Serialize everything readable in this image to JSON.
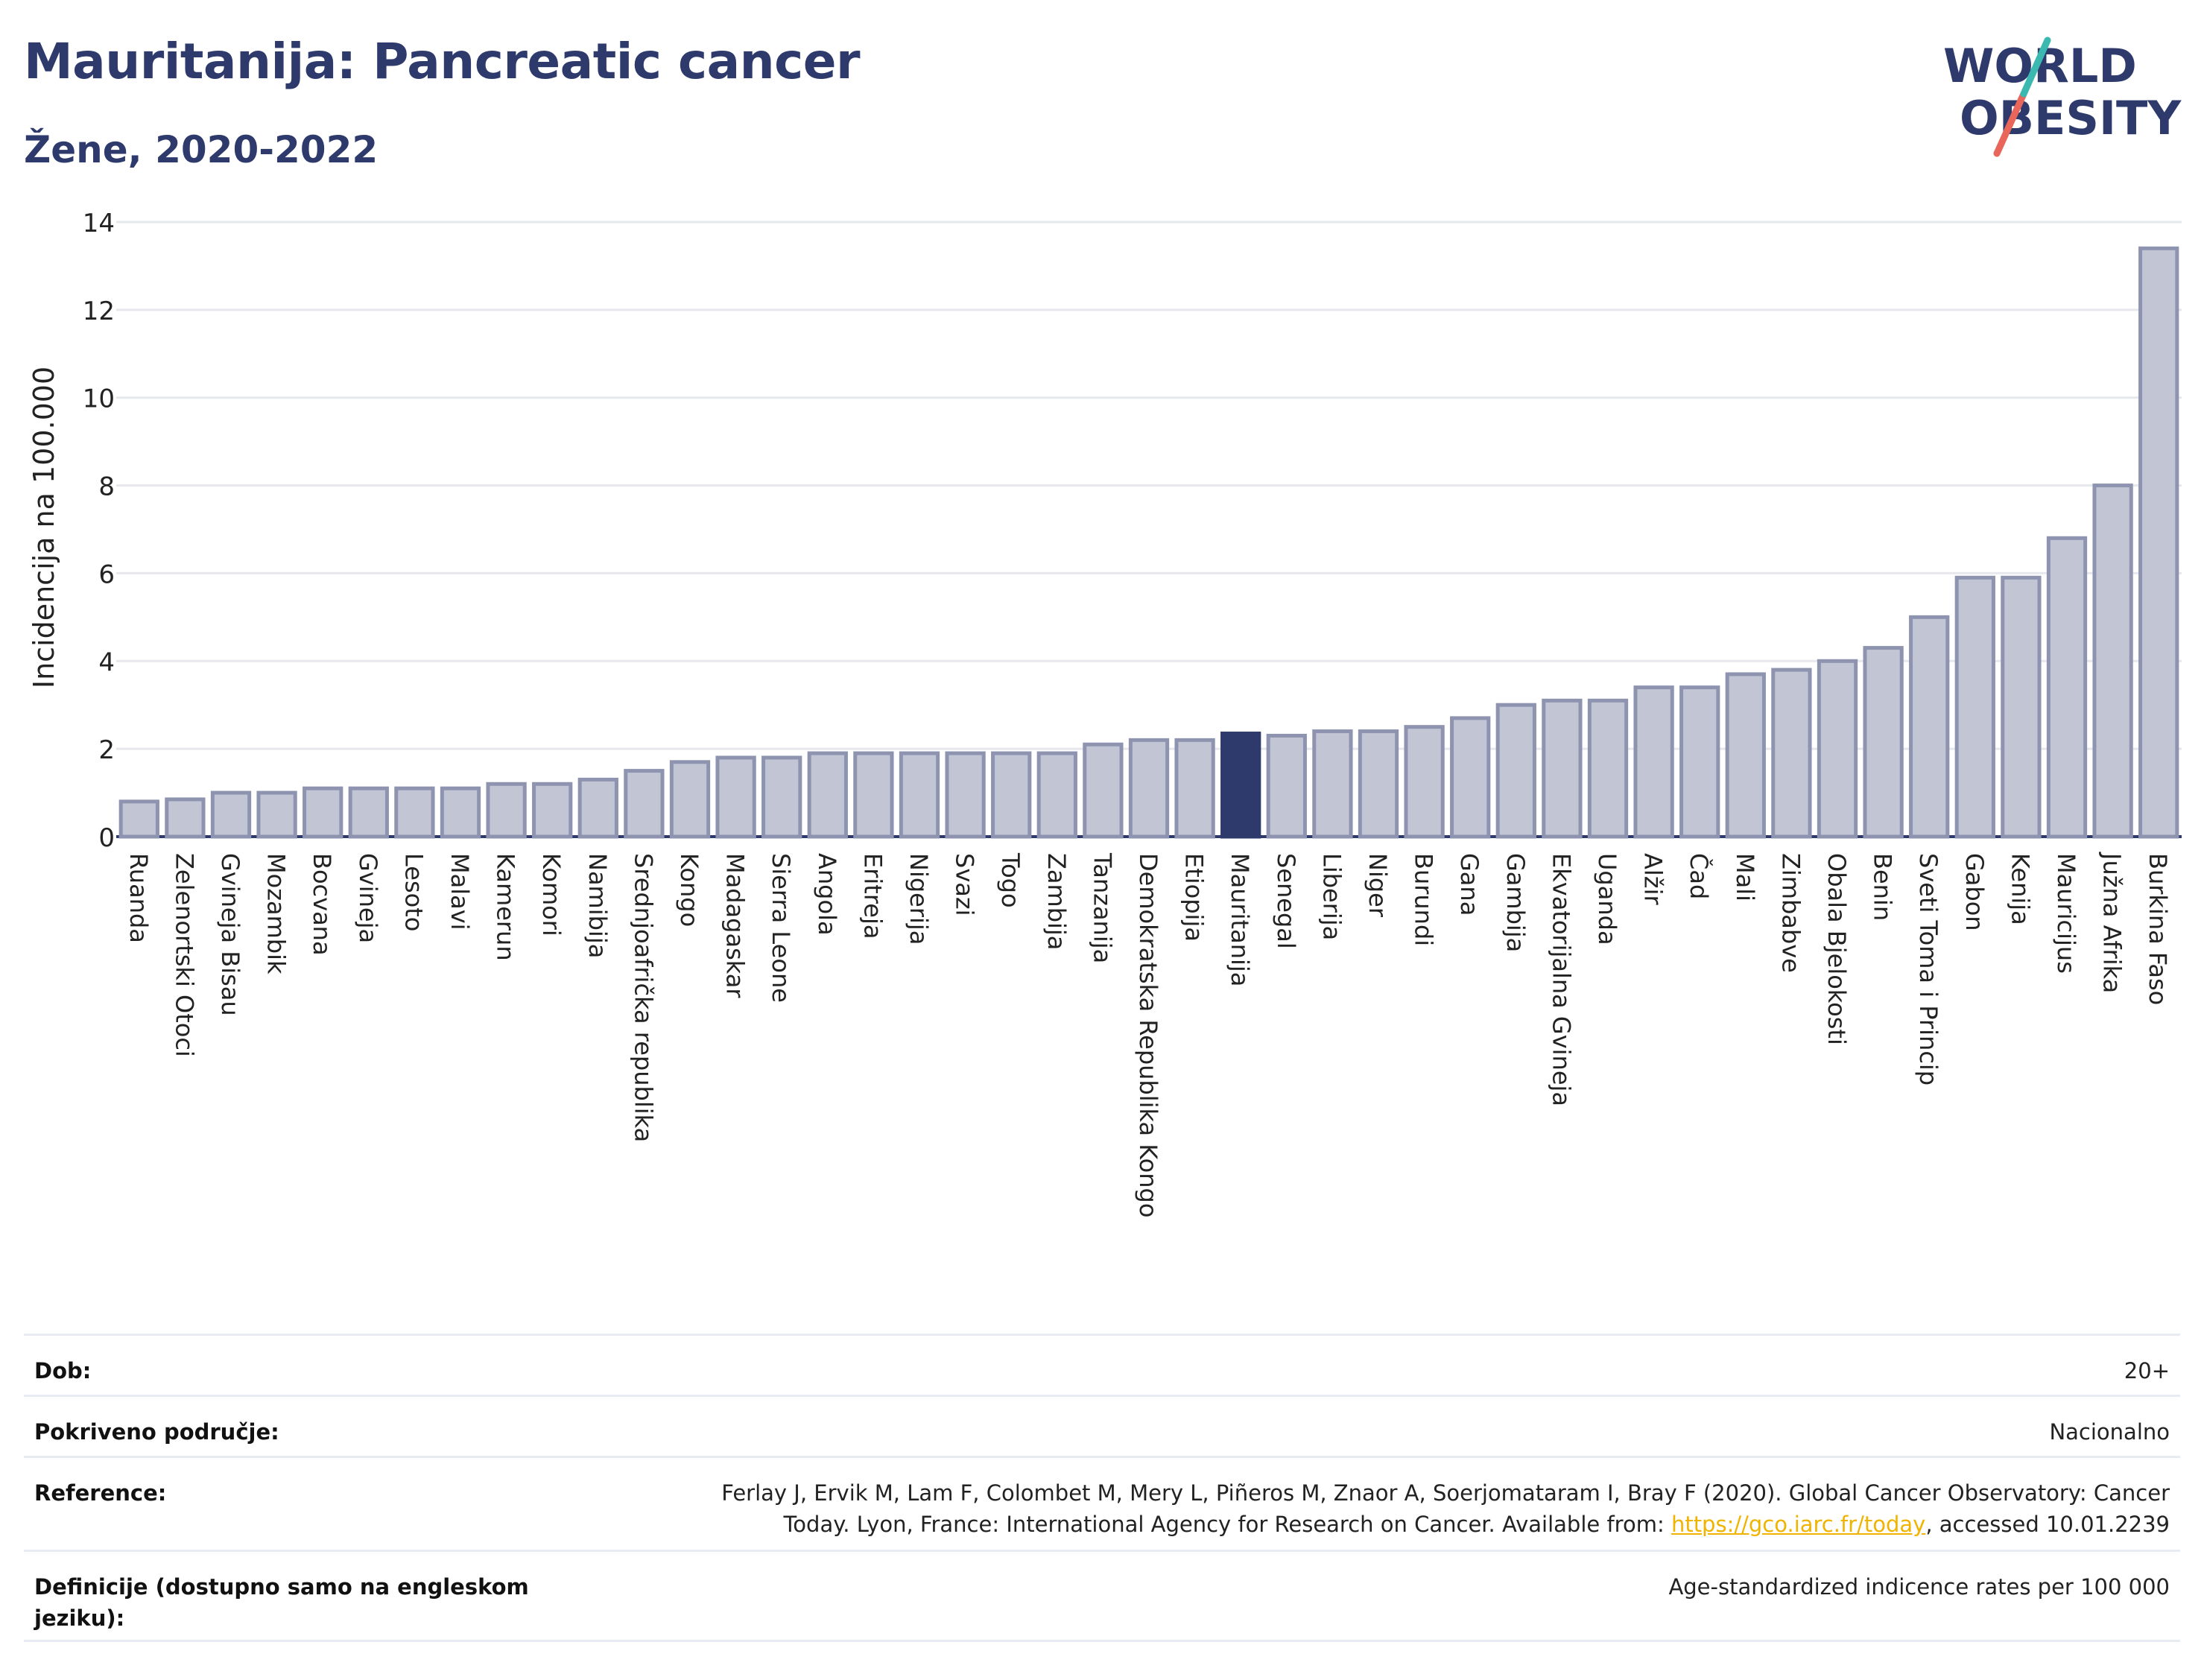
{
  "header": {
    "title": "Mauritanija: Pancreatic cancer",
    "subtitle": "Žene, 2020-2022"
  },
  "logo": {
    "line1": "WORLD",
    "line2": "OBESITY"
  },
  "colors": {
    "bar": "#c1c5d4",
    "bar_stroke": "#8e94b0",
    "highlight": "#2d3a6b",
    "title": "#2d3a6b",
    "grid": "#e6e8ee"
  },
  "chart_data": {
    "type": "bar",
    "ylabel": "Incidencija na 100.000",
    "ylim": [
      0,
      14
    ],
    "yticks": [
      0,
      2,
      4,
      6,
      8,
      10,
      12,
      14
    ],
    "highlight": "Mauritanija",
    "categories": [
      "Ruanda",
      "Zelenortski Otoci",
      "Gvineja Bisau",
      "Mozambik",
      "Bocvana",
      "Gvineja",
      "Lesoto",
      "Malavi",
      "Kamerun",
      "Komori",
      "Namibija",
      "Srednjoafrička republika",
      "Kongo",
      "Madagaskar",
      "Sierra Leone",
      "Angola",
      "Eritreja",
      "Nigerija",
      "Svazi",
      "Togo",
      "Zambija",
      "Tanzanija",
      "Demokratska Republika Kongo",
      "Etiopija",
      "Mauritanija",
      "Senegal",
      "Liberija",
      "Niger",
      "Burundi",
      "Gana",
      "Gambija",
      "Ekvatorijalna Gvineja",
      "Uganda",
      "Alžir",
      "Čad",
      "Mali",
      "Zimbabve",
      "Obala Bjelokosti",
      "Benin",
      "Sveti Toma i Princip",
      "Gabon",
      "Kenija",
      "Mauricijus",
      "Južna Afrika",
      "Burkina Faso"
    ],
    "values": [
      0.8,
      0.85,
      1.0,
      1.0,
      1.1,
      1.1,
      1.1,
      1.1,
      1.2,
      1.2,
      1.3,
      1.5,
      1.7,
      1.8,
      1.8,
      1.9,
      1.9,
      1.9,
      1.9,
      1.9,
      1.9,
      2.1,
      2.2,
      2.2,
      2.35,
      2.3,
      2.4,
      2.4,
      2.5,
      2.7,
      3.0,
      3.1,
      3.1,
      3.4,
      3.4,
      3.7,
      3.8,
      4.0,
      4.3,
      5.0,
      5.9,
      5.9,
      6.8,
      8.0,
      13.4
    ]
  },
  "info_table": [
    {
      "key": "Dob:",
      "value": "20+"
    },
    {
      "key": "Pokriveno područje:",
      "value": "Nacionalno"
    },
    {
      "key": "Reference:",
      "value_line1": "Ferlay J, Ervik M, Lam F, Colombet M, Mery L, Piñeros M, Znaor A, Soerjomataram I, Bray F (2020). Global Cancer Observatory: Cancer",
      "value_line2_pre": "Today. Lyon, France: International Agency for Research on Cancer. Available from: ",
      "link": "https://gco.iarc.fr/today",
      "value_line2_post": ", accessed 10.01.2239"
    },
    {
      "key_line1": "Definicije (dostupno samo na engleskom",
      "key_line2": "jeziku):",
      "value": "Age-standardized indicence rates per 100 000"
    }
  ]
}
